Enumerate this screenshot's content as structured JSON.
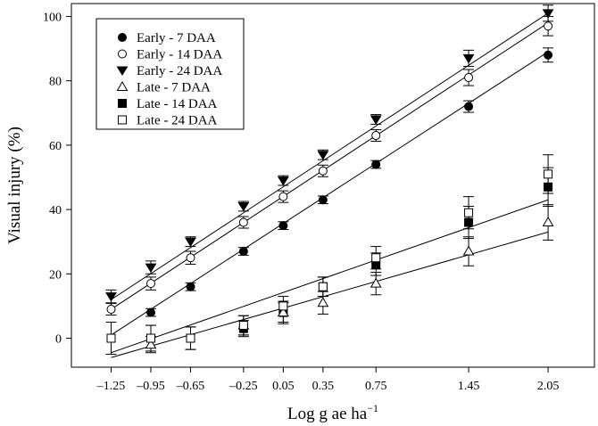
{
  "chart_data": {
    "type": "scatter",
    "xlabel": "Log g ae ha",
    "xlabel_sup": "−1",
    "ylabel": "Visual injury (%)",
    "x": [
      -1.25,
      -0.95,
      -0.65,
      -0.25,
      0.05,
      0.35,
      0.75,
      1.45,
      2.05
    ],
    "x_tick_labels": [
      "–1.25",
      "–0.95",
      "–0.65",
      "–0.25",
      "0.05",
      "0.35",
      "0.75",
      "1.45",
      "2.05"
    ],
    "y_ticks": [
      0,
      20,
      40,
      60,
      80,
      100
    ],
    "y_tick_labels": [
      "0",
      "20",
      "40",
      "60",
      "80",
      "100"
    ],
    "xlim": [
      -1.55,
      2.4
    ],
    "ylim": [
      -9,
      104
    ],
    "grid": false,
    "legend_position": "top-left",
    "series": [
      {
        "name": "Early - 7 DAA",
        "marker": "filled-circle",
        "values": [
          null,
          8,
          16,
          27,
          35,
          43,
          54,
          72,
          88
        ],
        "errors": [
          0,
          1.2,
          1.2,
          1.2,
          1.2,
          1.2,
          1.2,
          1.8,
          2.2
        ],
        "fit": [
          -1.25,
          1,
          2.05,
          89
        ]
      },
      {
        "name": "Early - 14 DAA",
        "marker": "open-circle",
        "values": [
          9,
          17,
          25,
          36,
          44,
          52,
          63,
          81,
          97
        ],
        "errors": [
          1.8,
          2,
          2,
          1.8,
          1.8,
          1.8,
          1.8,
          2.5,
          3
        ],
        "fit": [
          -1.25,
          9,
          2.05,
          98
        ]
      },
      {
        "name": "Early - 24 DAA",
        "marker": "filled-triangle",
        "values": [
          13,
          22,
          30,
          41,
          49,
          57,
          68,
          87,
          101
        ],
        "errors": [
          2,
          2,
          1.5,
          1.5,
          1.5,
          1.5,
          1.5,
          2.5,
          2.5
        ],
        "fit": [
          -1.25,
          12,
          2.05,
          101
        ]
      },
      {
        "name": "Late - 7 DAA",
        "marker": "open-triangle",
        "values": [
          null,
          -2,
          null,
          4,
          8,
          11,
          17,
          27,
          36
        ],
        "errors": [
          0,
          2.5,
          0,
          3,
          3.5,
          3.5,
          3.5,
          4.5,
          5.5
        ],
        "fit": [
          -1.25,
          -6,
          2.05,
          33
        ]
      },
      {
        "name": "Late - 14 DAA",
        "marker": "filled-square",
        "values": [
          null,
          0,
          0,
          3,
          8,
          16,
          23,
          36,
          47
        ],
        "errors": [
          0,
          4,
          3.5,
          2.5,
          3,
          3,
          3.5,
          5,
          6
        ],
        "fit": [
          -1.25,
          -4.5,
          2.05,
          43
        ]
      },
      {
        "name": "Late - 24 DAA",
        "marker": "open-square",
        "values": [
          0,
          0,
          0,
          4,
          10,
          16,
          25,
          39,
          51
        ],
        "errors": [
          5,
          4,
          3.5,
          3,
          3,
          3,
          3.5,
          5,
          6
        ],
        "fit": null
      }
    ]
  }
}
